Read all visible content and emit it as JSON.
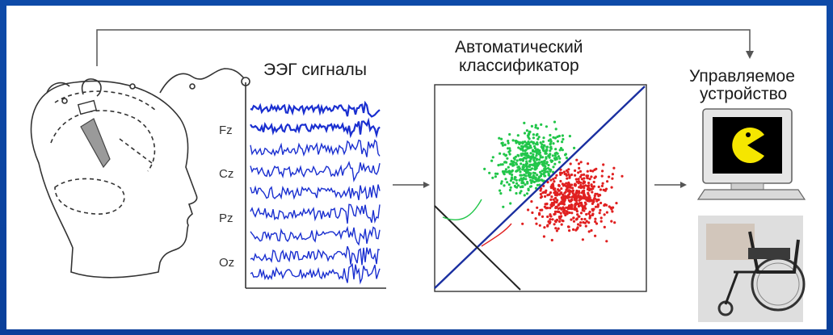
{
  "labels": {
    "eeg_title": "ЭЭГ сигналы",
    "classifier_line1": "Автоматический",
    "classifier_line2": "классификатор",
    "device_line1": "Управляемое",
    "device_line2": "устройство"
  },
  "channels": [
    "Fz",
    "Cz",
    "Pz",
    "Oz"
  ],
  "colors": {
    "background": "#0a3f9a",
    "eeg_trace": "#1a2fd0",
    "class_a": "#22c64a",
    "class_b": "#e02020",
    "boundary": "#1a2fa0",
    "pacman": "#f5e600"
  },
  "icons": [
    "head-icon",
    "computer-monitor-icon",
    "pacman-icon",
    "wheelchair-icon"
  ]
}
